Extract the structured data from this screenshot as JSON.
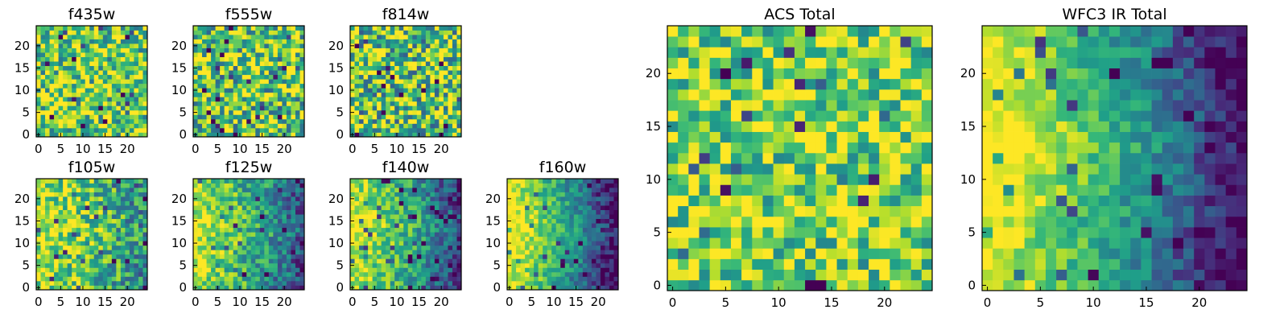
{
  "chart_data": {
    "type": "heatmap",
    "colormap": "viridis",
    "grid_size": 25,
    "value_range": [
      0,
      1
    ],
    "panels": [
      {
        "title": "f435w",
        "x_ticks": [
          0,
          5,
          10,
          15,
          20
        ],
        "y_ticks": [
          0,
          5,
          10,
          15,
          20
        ],
        "ylim": [
          -0.5,
          24.5
        ],
        "pattern": "uniform-noise",
        "pattern_params": {
          "seed": 11,
          "mean": 0.76,
          "spread": 0.38,
          "gradient": 0
        }
      },
      {
        "title": "f555w",
        "x_ticks": [
          0,
          5,
          10,
          15,
          20
        ],
        "y_ticks": [
          0,
          5,
          10,
          15,
          20
        ],
        "ylim": [
          -0.5,
          24.5
        ],
        "pattern": "uniform-noise",
        "pattern_params": {
          "seed": 23,
          "mean": 0.74,
          "spread": 0.42,
          "gradient": 0
        }
      },
      {
        "title": "f814w",
        "x_ticks": [
          0,
          5,
          10,
          15,
          20
        ],
        "y_ticks": [
          0,
          5,
          10,
          15,
          20
        ],
        "ylim": [
          -0.5,
          24.5
        ],
        "pattern": "uniform-noise",
        "pattern_params": {
          "seed": 37,
          "mean": 0.73,
          "spread": 0.45,
          "gradient": 0
        }
      },
      {
        "title": "f105w",
        "x_ticks": [
          0,
          5,
          10,
          15,
          20
        ],
        "y_ticks": [
          0,
          5,
          10,
          15,
          20
        ],
        "ylim": [
          -0.5,
          24.5
        ],
        "pattern": "left-bright-gradient",
        "pattern_params": {
          "seed": 41,
          "mean": 0.68,
          "spread": 0.3,
          "gradient": 0.35
        }
      },
      {
        "title": "f125w",
        "x_ticks": [
          0,
          5,
          10,
          15,
          20
        ],
        "y_ticks": [
          0,
          5,
          10,
          15,
          20
        ],
        "ylim": [
          -0.5,
          24.5
        ],
        "pattern": "left-bright-gradient",
        "pattern_params": {
          "seed": 53,
          "mean": 0.58,
          "spread": 0.24,
          "gradient": 0.55
        }
      },
      {
        "title": "f140w",
        "x_ticks": [
          0,
          5,
          10,
          15,
          20
        ],
        "y_ticks": [
          0,
          5,
          10,
          15,
          20
        ],
        "ylim": [
          -0.5,
          24.5
        ],
        "pattern": "left-bright-gradient",
        "pattern_params": {
          "seed": 67,
          "mean": 0.56,
          "spread": 0.22,
          "gradient": 0.65
        }
      },
      {
        "title": "f160w",
        "x_ticks": [
          0,
          5,
          10,
          15,
          20
        ],
        "y_ticks": [
          0,
          5,
          10,
          15,
          20
        ],
        "ylim": [
          -0.5,
          24.5
        ],
        "pattern": "left-bright-gradient",
        "pattern_params": {
          "seed": 79,
          "mean": 0.5,
          "spread": 0.18,
          "gradient": 0.85
        }
      },
      {
        "title": "ACS Total",
        "x_ticks": [
          0,
          5,
          10,
          15,
          20
        ],
        "y_ticks": [
          0,
          5,
          10,
          15,
          20
        ],
        "ylim": [
          -0.5,
          24.5
        ],
        "pattern": "uniform-noise",
        "pattern_params": {
          "seed": 97,
          "mean": 0.78,
          "spread": 0.32,
          "gradient": 0
        }
      },
      {
        "title": "WFC3 IR Total",
        "x_ticks": [
          0,
          5,
          10,
          15,
          20
        ],
        "y_ticks": [
          0,
          5,
          10,
          15,
          20
        ],
        "ylim": [
          -0.5,
          24.5
        ],
        "pattern": "left-bright-gradient",
        "pattern_params": {
          "seed": 109,
          "mean": 0.5,
          "spread": 0.16,
          "gradient": 0.9
        }
      }
    ]
  }
}
